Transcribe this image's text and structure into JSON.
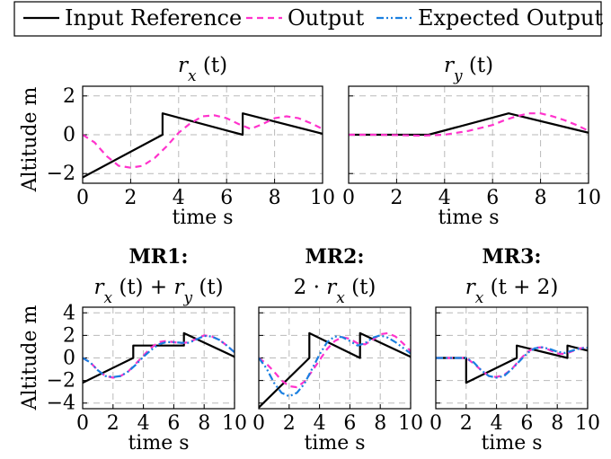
{
  "legend": {
    "items": [
      {
        "label": "Input Reference",
        "color": "#000000",
        "dash": "solid"
      },
      {
        "label": "Output",
        "color": "#ff33cc",
        "dash": "dashed"
      },
      {
        "label": "Expected Output",
        "color": "#1a7fe0",
        "dash": "dashdotdot"
      }
    ]
  },
  "chart_data": [
    {
      "type": "line",
      "title": "r_x (t)",
      "xlabel": "time s",
      "ylabel": "Altitude m",
      "xlim": [
        0,
        10
      ],
      "ylim": [
        -2.5,
        2.5
      ],
      "xticks": [
        0,
        2,
        4,
        6,
        8,
        10
      ],
      "yticks": [
        -2,
        0,
        2
      ],
      "grid": true,
      "series": [
        {
          "name": "Input Reference",
          "x": [
            0,
            3.33,
            3.33,
            6.67,
            6.67,
            10
          ],
          "y": [
            -2.2,
            0,
            1.1,
            0.0,
            1.1,
            0.05
          ]
        },
        {
          "name": "Output",
          "x": [
            0,
            0.5,
            1,
            1.5,
            2,
            2.5,
            3,
            3.5,
            4,
            4.5,
            5,
            5.5,
            6,
            6.5,
            7,
            7.5,
            8,
            8.5,
            9,
            9.5,
            10
          ],
          "y": [
            0,
            -0.4,
            -1.1,
            -1.6,
            -1.7,
            -1.6,
            -1.2,
            -0.6,
            0.1,
            0.6,
            0.95,
            1.0,
            0.85,
            0.55,
            0.3,
            0.55,
            0.85,
            0.95,
            0.85,
            0.6,
            0.3
          ]
        }
      ]
    },
    {
      "type": "line",
      "title": "r_y (t)",
      "xlabel": "time s",
      "ylabel": "",
      "xlim": [
        0,
        10
      ],
      "ylim": [
        -2.5,
        2.5
      ],
      "xticks": [
        0,
        2,
        4,
        6,
        8,
        10
      ],
      "grid": true,
      "series": [
        {
          "name": "Input Reference",
          "x": [
            0,
            3.33,
            6.67,
            10
          ],
          "y": [
            0,
            0,
            1.1,
            0.1
          ]
        },
        {
          "name": "Output",
          "x": [
            0,
            1,
            2,
            3,
            4,
            5,
            6,
            6.5,
            7,
            7.5,
            8,
            8.5,
            9,
            9.5,
            10
          ],
          "y": [
            0,
            0,
            -0.02,
            -0.05,
            0.0,
            0.2,
            0.5,
            0.75,
            0.95,
            1.1,
            1.1,
            0.95,
            0.75,
            0.5,
            0.2
          ]
        }
      ]
    },
    {
      "type": "line",
      "title": "r_x (t) + r_y (t)",
      "label": "MR1:",
      "xlabel": "time s",
      "ylabel": "Altitude m",
      "xlim": [
        0,
        10
      ],
      "ylim": [
        -4.5,
        4.5
      ],
      "xticks": [
        0,
        2,
        4,
        6,
        8,
        10
      ],
      "yticks": [
        -4,
        -2,
        0,
        2,
        4
      ],
      "grid": true,
      "series": [
        {
          "name": "Input Reference",
          "x": [
            0,
            3.33,
            3.33,
            6.67,
            6.67,
            10
          ],
          "y": [
            -2.2,
            0,
            1.1,
            1.1,
            2.2,
            0.1
          ]
        },
        {
          "name": "Output",
          "x": [
            0,
            0.5,
            1,
            1.5,
            2,
            2.5,
            3,
            3.5,
            4,
            4.5,
            5,
            5.5,
            6,
            6.5,
            7,
            7.5,
            8,
            8.5,
            9,
            9.5,
            10
          ],
          "y": [
            0,
            -0.4,
            -1.1,
            -1.6,
            -1.75,
            -1.6,
            -1.2,
            -0.5,
            0.2,
            0.9,
            1.4,
            1.5,
            1.4,
            1.3,
            1.4,
            1.7,
            2.0,
            1.9,
            1.6,
            1.1,
            0.5
          ]
        },
        {
          "name": "Expected Output",
          "x": [
            0,
            0.5,
            1,
            1.5,
            2,
            2.5,
            3,
            3.5,
            4,
            4.5,
            5,
            5.5,
            6,
            6.5,
            7,
            7.5,
            8,
            8.5,
            9,
            9.5,
            10
          ],
          "y": [
            0,
            -0.4,
            -1.1,
            -1.6,
            -1.7,
            -1.6,
            -1.2,
            -0.6,
            0.1,
            0.7,
            1.2,
            1.4,
            1.4,
            1.35,
            1.35,
            1.65,
            1.95,
            1.9,
            1.6,
            1.1,
            0.5
          ]
        }
      ]
    },
    {
      "type": "line",
      "title": "2 · r_x (t)",
      "label": "MR2:",
      "xlabel": "time s",
      "ylabel": "",
      "xlim": [
        0,
        10
      ],
      "ylim": [
        -4.5,
        4.5
      ],
      "xticks": [
        0,
        2,
        4,
        6,
        8,
        10
      ],
      "grid": true,
      "series": [
        {
          "name": "Input Reference",
          "x": [
            0,
            3.33,
            3.33,
            6.67,
            6.67,
            10
          ],
          "y": [
            -4.4,
            0,
            2.2,
            0,
            2.2,
            0.1
          ]
        },
        {
          "name": "Output",
          "x": [
            0,
            0.5,
            1,
            1.5,
            2,
            2.5,
            3,
            3.5,
            4,
            4.5,
            5,
            5.5,
            6,
            6.5,
            7,
            7.5,
            8,
            8.5,
            9,
            9.5,
            10
          ],
          "y": [
            0,
            -0.5,
            -1.2,
            -2.0,
            -2.5,
            -2.6,
            -2.1,
            -1.2,
            -0.2,
            0.8,
            1.5,
            1.85,
            1.7,
            1.3,
            1.2,
            1.6,
            2.1,
            2.2,
            1.9,
            1.3,
            0.6
          ]
        },
        {
          "name": "Expected Output",
          "x": [
            0,
            0.5,
            1,
            1.5,
            2,
            2.5,
            3,
            3.5,
            4,
            4.5,
            5,
            5.5,
            6,
            6.5,
            7,
            7.5,
            8,
            8.5,
            9,
            9.5,
            10
          ],
          "y": [
            0,
            -0.9,
            -2.2,
            -3.1,
            -3.4,
            -3.1,
            -2.3,
            -1.0,
            0.3,
            1.4,
            1.9,
            1.85,
            1.5,
            1.1,
            1.3,
            1.8,
            2.0,
            1.8,
            1.4,
            0.9,
            0.4
          ]
        }
      ]
    },
    {
      "type": "line",
      "title": "r_x (t + 2)",
      "label": "MR3:",
      "xlabel": "time s",
      "ylabel": "",
      "xlim": [
        0,
        10
      ],
      "ylim": [
        -4.5,
        4.5
      ],
      "xticks": [
        0,
        2,
        4,
        6,
        8,
        10
      ],
      "grid": true,
      "series": [
        {
          "name": "Input Reference",
          "x": [
            0,
            2,
            2,
            5.33,
            5.33,
            8.67,
            8.67,
            10
          ],
          "y": [
            0,
            0,
            -2.2,
            0,
            1.1,
            0,
            1.1,
            0.65
          ]
        },
        {
          "name": "Output",
          "x": [
            0,
            2,
            2.5,
            3,
            3.5,
            4,
            4.5,
            5,
            5.5,
            6,
            6.5,
            7,
            7.5,
            8,
            8.5,
            9,
            9.5,
            10
          ],
          "y": [
            0,
            0,
            -0.5,
            -1.1,
            -1.6,
            -1.7,
            -1.5,
            -1.0,
            -0.2,
            0.5,
            0.9,
            0.95,
            0.7,
            0.4,
            0.35,
            0.6,
            0.85,
            0.95
          ]
        },
        {
          "name": "Expected Output",
          "x": [
            0,
            2,
            2.5,
            3,
            3.5,
            4,
            4.5,
            5,
            5.5,
            6,
            6.5,
            7,
            7.5,
            8,
            8.5,
            9,
            9.5,
            10
          ],
          "y": [
            0,
            0,
            -0.4,
            -1.1,
            -1.6,
            -1.75,
            -1.6,
            -1.0,
            -0.3,
            0.4,
            0.85,
            0.95,
            0.8,
            0.55,
            0.45,
            0.65,
            0.85,
            0.9
          ]
        }
      ]
    }
  ]
}
